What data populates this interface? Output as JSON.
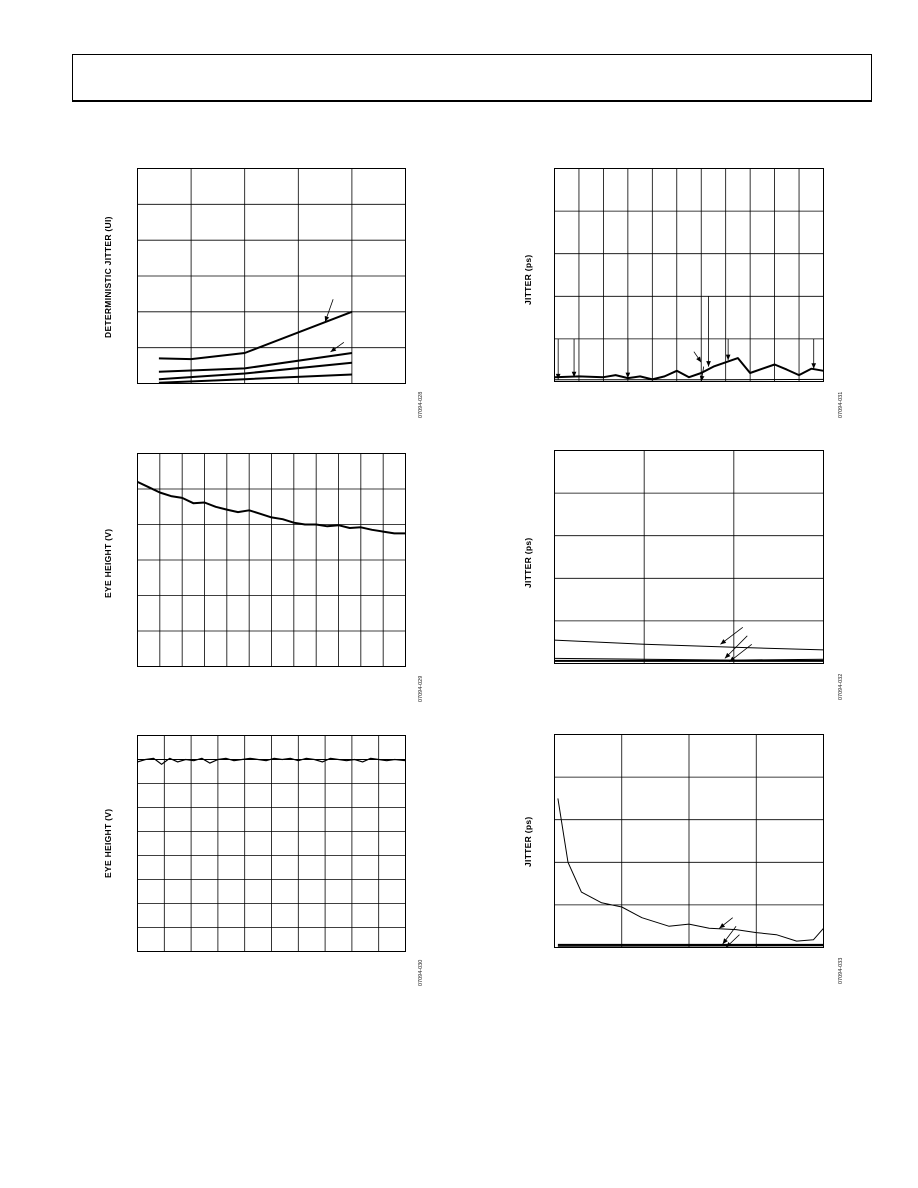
{
  "chart_data": [
    {
      "id": "deterministic-jitter",
      "type": "line",
      "title": "",
      "xlabel": "",
      "ylabel": "DETERMINISTIC JITTER (UI)",
      "figure_code": "07094-028",
      "grid_cols": 5,
      "grid_rows": 6,
      "xlim": [
        0,
        5
      ],
      "ylim": [
        0,
        6
      ],
      "series": [
        {
          "x": [
            0.4,
            1.0,
            2.0,
            4.0
          ],
          "y": [
            0.7,
            0.68,
            0.85,
            2.0
          ],
          "width": 2
        },
        {
          "x": [
            0.4,
            2.0,
            4.0
          ],
          "y": [
            0.33,
            0.42,
            0.85
          ],
          "width": 2
        },
        {
          "x": [
            0.4,
            2.0,
            4.0
          ],
          "y": [
            0.12,
            0.28,
            0.58
          ],
          "width": 2
        },
        {
          "x": [
            0.4,
            2.0,
            4.0
          ],
          "y": [
            0.02,
            0.12,
            0.25
          ],
          "width": 2
        }
      ],
      "annotations": [
        {
          "from": [
            3.65,
            2.35
          ],
          "to": [
            3.5,
            1.72
          ]
        },
        {
          "from": [
            3.85,
            1.15
          ],
          "to": [
            3.6,
            0.88
          ]
        }
      ]
    },
    {
      "id": "jitter-ps-top",
      "type": "line",
      "title": "",
      "xlabel": "",
      "ylabel": "JITTER (ps)",
      "figure_code": "07094-031",
      "grid_cols": 11,
      "grid_rows": 5,
      "xlim": [
        0,
        11
      ],
      "ylim": [
        0,
        5
      ],
      "series": [
        {
          "x": [
            0,
            1,
            2,
            2.5,
            3,
            3.5,
            4,
            4.5,
            5,
            5.5,
            6,
            6.5,
            7,
            7.5,
            8,
            8.5,
            9,
            9.5,
            10,
            10.5,
            11
          ],
          "y": [
            0.1,
            0.12,
            0.1,
            0.15,
            0.08,
            0.12,
            0.05,
            0.12,
            0.25,
            0.1,
            0.2,
            0.35,
            0.45,
            0.55,
            0.2,
            0.3,
            0.4,
            0.28,
            0.15,
            0.3,
            0.25
          ],
          "width": 2
        },
        {
          "x": [
            0,
            6.5,
            11
          ],
          "y": [
            0.04,
            0.04,
            0.05
          ],
          "width": 1
        }
      ],
      "annotations": [
        {
          "from": [
            0.15,
            1.0
          ],
          "to": [
            0.15,
            0.05
          ]
        },
        {
          "from": [
            0.8,
            1.0
          ],
          "to": [
            0.8,
            0.1
          ]
        },
        {
          "from": [
            3.0,
            1.0
          ],
          "to": [
            3.0,
            0.08
          ]
        },
        {
          "from": [
            6.3,
            2.0
          ],
          "to": [
            6.3,
            0.35
          ]
        },
        {
          "from": [
            7.1,
            1.0
          ],
          "to": [
            7.1,
            0.5
          ]
        },
        {
          "from": [
            10.6,
            1.0
          ],
          "to": [
            10.6,
            0.3
          ]
        },
        {
          "from": [
            5.7,
            0.7
          ],
          "to": [
            6.0,
            0.45
          ]
        },
        {
          "from": [
            6.1,
            0.35
          ],
          "to": [
            6.0,
            0.0
          ]
        }
      ]
    },
    {
      "id": "eye-height-middle",
      "type": "line",
      "title": "",
      "xlabel": "",
      "ylabel": "EYE HEIGHT (V)",
      "figure_code": "07094-029",
      "grid_cols": 12,
      "grid_rows": 6,
      "xlim": [
        0,
        12
      ],
      "ylim": [
        0,
        6
      ],
      "series": [
        {
          "x": [
            0,
            0.5,
            1.0,
            1.5,
            2.0,
            2.5,
            3.0,
            3.5,
            4.0,
            4.5,
            5.0,
            5.5,
            6.0,
            6.5,
            7.0,
            7.5,
            8.0,
            8.5,
            9.0,
            9.5,
            10.0,
            10.5,
            11.0,
            11.5,
            12.0
          ],
          "y": [
            5.2,
            5.05,
            4.9,
            4.8,
            4.75,
            4.6,
            4.62,
            4.5,
            4.42,
            4.35,
            4.4,
            4.3,
            4.2,
            4.15,
            4.05,
            4.0,
            4.0,
            3.95,
            3.98,
            3.9,
            3.92,
            3.85,
            3.8,
            3.75,
            3.75
          ],
          "width": 2
        }
      ]
    },
    {
      "id": "jitter-ps-middle",
      "type": "line",
      "title": "",
      "xlabel": "",
      "ylabel": "JITTER (ps)",
      "figure_code": "07094-032",
      "grid_cols": 3,
      "grid_rows": 5,
      "xlim": [
        0,
        3
      ],
      "ylim": [
        0,
        5
      ],
      "series": [
        {
          "x": [
            0,
            1,
            2,
            3
          ],
          "y": [
            0.55,
            0.45,
            0.38,
            0.32
          ],
          "width": 1
        },
        {
          "x": [
            0,
            1,
            2,
            3
          ],
          "y": [
            0.12,
            0.1,
            0.08,
            0.1
          ],
          "width": 1
        },
        {
          "x": [
            0,
            3
          ],
          "y": [
            0.06,
            0.06
          ],
          "width": 2
        }
      ],
      "annotations": [
        {
          "from": [
            2.1,
            0.85
          ],
          "to": [
            1.85,
            0.45
          ]
        },
        {
          "from": [
            2.15,
            0.65
          ],
          "to": [
            1.9,
            0.12
          ]
        },
        {
          "from": [
            2.2,
            0.45
          ],
          "to": [
            1.95,
            0.04
          ]
        }
      ]
    },
    {
      "id": "eye-height-bottom",
      "type": "line",
      "title": "",
      "xlabel": "",
      "ylabel": "EYE HEIGHT (V)",
      "figure_code": "07094-030",
      "grid_cols": 10,
      "grid_rows": 9,
      "xlim": [
        0,
        10
      ],
      "ylim": [
        0,
        9
      ],
      "series": [
        {
          "x": [
            0,
            0.3,
            0.6,
            0.9,
            1.2,
            1.5,
            1.8,
            2.1,
            2.4,
            2.7,
            3.0,
            3.3,
            3.6,
            3.9,
            4.2,
            4.5,
            4.8,
            5.1,
            5.4,
            5.7,
            6.0,
            6.3,
            6.6,
            6.9,
            7.2,
            7.5,
            7.8,
            8.1,
            8.4,
            8.7,
            9.0,
            9.3,
            9.6,
            10.0
          ],
          "y": [
            7.9,
            8.0,
            8.05,
            7.8,
            8.05,
            7.9,
            8.0,
            7.95,
            8.05,
            7.85,
            8.0,
            8.05,
            7.95,
            8.0,
            8.05,
            8.0,
            7.95,
            8.05,
            8.0,
            8.05,
            7.95,
            8.05,
            8.0,
            7.9,
            8.05,
            8.0,
            7.95,
            8.0,
            7.9,
            8.05,
            8.0,
            7.95,
            8.0,
            7.95
          ],
          "width": 1.2
        },
        {
          "x": [
            0,
            10
          ],
          "y": [
            8.0,
            8.0
          ],
          "width": 1
        }
      ]
    },
    {
      "id": "jitter-ps-bottom",
      "type": "line",
      "title": "",
      "xlabel": "",
      "ylabel": "JITTER (ps)",
      "figure_code": "07094-033",
      "grid_cols": 4,
      "grid_rows": 5,
      "xlim": [
        0,
        4
      ],
      "ylim": [
        0,
        5
      ],
      "series": [
        {
          "x": [
            0.05,
            0.2,
            0.4,
            0.7,
            1.0,
            1.3,
            1.7,
            2.0,
            2.3,
            2.7,
            3.0,
            3.3,
            3.6,
            3.85,
            4.0
          ],
          "y": [
            3.5,
            2.0,
            1.3,
            1.05,
            0.95,
            0.7,
            0.5,
            0.55,
            0.45,
            0.42,
            0.35,
            0.3,
            0.15,
            0.18,
            0.45
          ],
          "width": 1
        },
        {
          "x": [
            0.05,
            4.0
          ],
          "y": [
            0.06,
            0.06
          ],
          "width": 2
        },
        {
          "x": [
            0.05,
            4.0
          ],
          "y": [
            0.03,
            0.04
          ],
          "width": 1
        }
      ],
      "annotations": [
        {
          "from": [
            2.65,
            0.7
          ],
          "to": [
            2.45,
            0.45
          ]
        },
        {
          "from": [
            2.7,
            0.5
          ],
          "to": [
            2.5,
            0.08
          ]
        },
        {
          "from": [
            2.75,
            0.3
          ],
          "to": [
            2.55,
            0.0
          ]
        }
      ]
    }
  ]
}
